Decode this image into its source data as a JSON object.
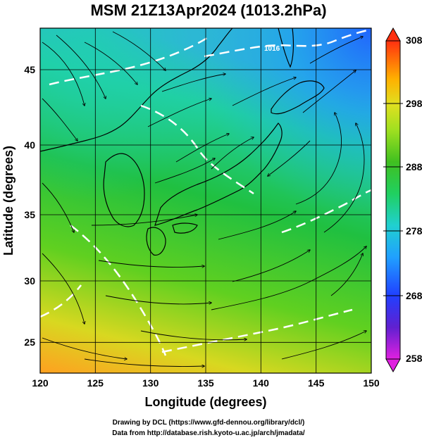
{
  "title": "MSM 21Z13Apr2024 (1013.2hPa)",
  "xaxis": {
    "label": "Longitude (degrees)",
    "ticks": [
      "120",
      "125",
      "130",
      "135",
      "140",
      "145",
      "150"
    ],
    "range": [
      120,
      150
    ]
  },
  "yaxis": {
    "label": "Latitude  (degrees)",
    "ticks": [
      "25",
      "30",
      "35",
      "40",
      "45"
    ],
    "range": [
      22.4,
      47.6
    ]
  },
  "colorbar": {
    "ticks": [
      "258",
      "268",
      "278",
      "288",
      "298",
      "308"
    ],
    "range": [
      258,
      308
    ],
    "colors": [
      "#e020e0",
      "#4020d0",
      "#2040ff",
      "#20a0ff",
      "#20d0d0",
      "#20d060",
      "#20c020",
      "#80e020",
      "#e0e020",
      "#ffb000",
      "#ff5020",
      "#ff2010"
    ]
  },
  "credits": {
    "line1": "Drawing by DCL (https://www.gfd-dennou.org/library/dcl/)",
    "line2": "Data from http://database.rish.kyoto-u.ac.jp/arch/jmadata/"
  },
  "chart_data": {
    "type": "heatmap",
    "title": "MSM 21Z13Apr2024 (1013.2hPa)",
    "xlabel": "Longitude (degrees)",
    "ylabel": "Latitude  (degrees)",
    "xlim": [
      120,
      150
    ],
    "ylim": [
      22.4,
      47.6
    ],
    "colorbar_range": [
      258,
      308
    ],
    "colorbar_ticks": [
      258,
      268,
      278,
      288,
      298,
      308
    ],
    "grid": true,
    "contour_labels": [
      "1016"
    ]
  }
}
